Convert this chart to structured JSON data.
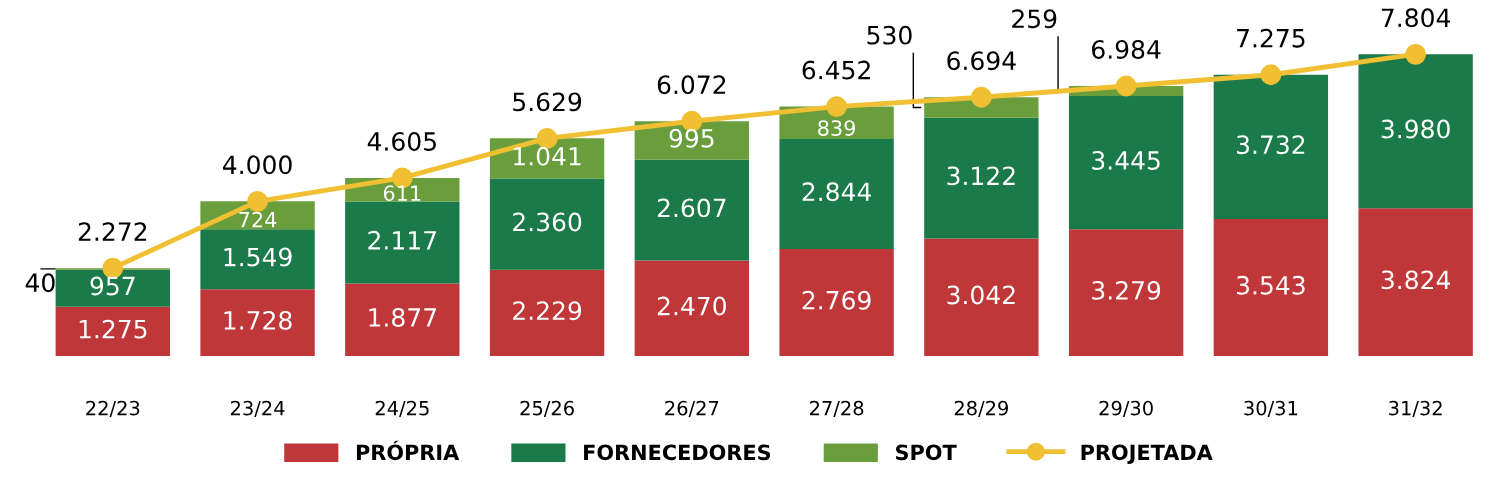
{
  "chart_data": {
    "type": "bar",
    "stacked": true,
    "categories": [
      "22/23",
      "23/24",
      "24/25",
      "25/26",
      "26/27",
      "27/28",
      "28/29",
      "29/30",
      "30/31",
      "31/32"
    ],
    "tick_labels": "x",
    "legend": "bottom",
    "grid": false,
    "series": [
      {
        "name": "PRÓPRIA",
        "color": "#c0373a",
        "values": [
          1275,
          1728,
          1877,
          2229,
          2470,
          2769,
          3042,
          3279,
          3543,
          3824
        ],
        "value_labels": [
          "1.275",
          "1.728",
          "1.877",
          "2.229",
          "2.470",
          "2.769",
          "3.042",
          "3.279",
          "3.543",
          "3.824"
        ]
      },
      {
        "name": "FORNECEDORES",
        "color": "#1b7a4a",
        "values": [
          957,
          1549,
          2117,
          2360,
          2607,
          2844,
          3122,
          3445,
          3732,
          3980
        ],
        "value_labels": [
          "957",
          "1.549",
          "2.117",
          "2.360",
          "2.607",
          "2.844",
          "3.122",
          "3.445",
          "3.732",
          "3.980"
        ]
      },
      {
        "name": "SPOT",
        "color": "#6a9e3c",
        "values": [
          40,
          724,
          611,
          1041,
          995,
          839,
          530,
          259,
          null,
          null
        ],
        "value_labels": [
          "40",
          "724",
          "611",
          "1.041",
          "995",
          "839",
          "530",
          "259",
          null,
          null
        ]
      },
      {
        "name": "PROJETADA",
        "type": "line",
        "color": "#f0bf32",
        "marker": "circle",
        "values": [
          2272,
          4000,
          4605,
          5629,
          6072,
          6452,
          6694,
          6984,
          7275,
          7804
        ],
        "value_labels": [
          "2.272",
          "4.000",
          "4.605",
          "5.629",
          "6.072",
          "6.452",
          "6.694",
          "6.984",
          "7.275",
          "7.804"
        ]
      }
    ]
  }
}
